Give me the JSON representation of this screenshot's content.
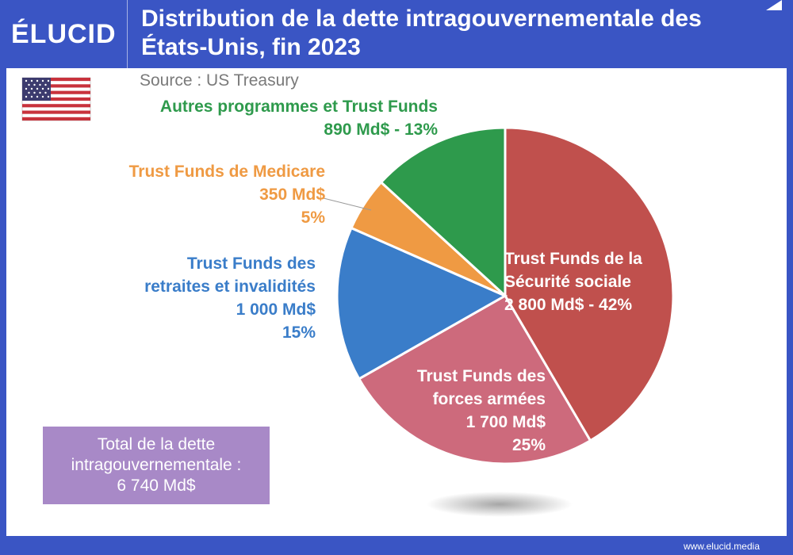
{
  "header": {
    "logo": "ÉLUCID",
    "title_line1": "Distribution de la dette intragouvernementale des",
    "title_line2": "États-Unis, fin 2023"
  },
  "source": "Source : US Treasury",
  "footer": {
    "url": "www.elucid.media"
  },
  "flag_icon": "us-flag-icon",
  "colors": {
    "brand_blue": "#3a55c4",
    "social_security": "#c0504d",
    "armed_forces": "#cd6a7c",
    "retirement": "#3a7dc9",
    "medicare": "#ef9a43",
    "other": "#2e9a4c",
    "total_box": "#a889c7"
  },
  "chart_data": {
    "type": "pie",
    "title": "Distribution de la dette intragouvernementale des États-Unis, fin 2023",
    "unit": "Md$",
    "slices": [
      {
        "key": "social_security",
        "lines": [
          "Trust Funds de la",
          "Sécurité sociale",
          "2 800 Md$ - 42%"
        ],
        "value": 2800,
        "percent": 42
      },
      {
        "key": "armed_forces",
        "lines": [
          "Trust Funds des",
          "forces armées",
          "1 700 Md$",
          "25%"
        ],
        "value": 1700,
        "percent": 25
      },
      {
        "key": "retirement",
        "lines": [
          "Trust Funds des",
          "retraites et invalidités",
          "1 000 Md$",
          "15%"
        ],
        "value": 1000,
        "percent": 15
      },
      {
        "key": "medicare",
        "lines": [
          "Trust Funds de Medicare",
          "350 Md$",
          "5%"
        ],
        "value": 350,
        "percent": 5
      },
      {
        "key": "other",
        "lines": [
          "Autres programmes et Trust Funds",
          "890 Md$ - 13%"
        ],
        "value": 890,
        "percent": 13
      }
    ],
    "total_lines": [
      "Total de la dette",
      "intragouvernementale :",
      "6 740 Md$"
    ],
    "total_value": 6740
  }
}
